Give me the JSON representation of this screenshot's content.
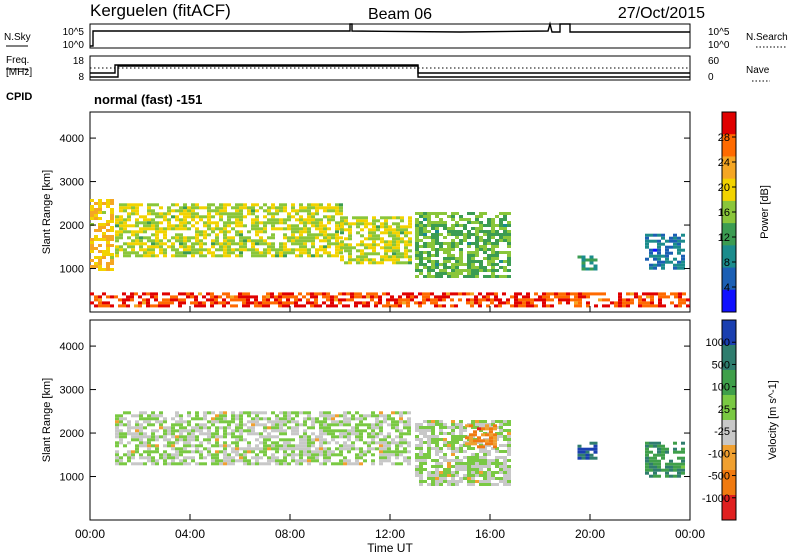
{
  "header": {
    "site": "Kerguelen (fitACF)",
    "beam": "Beam 06",
    "date": "27/Oct/2015"
  },
  "top_panels": {
    "nsky_label": "N.Sky",
    "nsky_ticks": [
      "10^5",
      "10^0"
    ],
    "nsearch_label": "N.Search",
    "nsearch_ticks": [
      "10^5",
      "10^0"
    ],
    "freq_label_1": "Freq.",
    "freq_label_2": "[MHz]",
    "freq_ticks": [
      "18",
      "8"
    ],
    "nave_label": "Nave",
    "nave_ticks": [
      "60",
      "0"
    ],
    "cpid_label": "CPID",
    "cpid_value": "normal (fast) -151"
  },
  "chart_data": [
    {
      "type": "heatmap",
      "name": "power",
      "ylabel": "Slant Range [km]",
      "xlabel": "",
      "ylim": [
        0,
        4600
      ],
      "yticks": [
        "1000",
        "2000",
        "3000",
        "4000"
      ],
      "colorbar_label": "Power [dB]",
      "colorbar_ticks": [
        "28",
        "24",
        "20",
        "16",
        "12",
        "8",
        "4"
      ],
      "colorbar_colors": [
        "#e00000",
        "#ff6a00",
        "#f5a623",
        "#f2d300",
        "#8ac63a",
        "#3b9c52",
        "#1b8c8c",
        "#1b5fb4",
        "#1010ff"
      ],
      "echo_regions": [
        {
          "t0": 0.0,
          "t1": 0.9,
          "r0": 1000,
          "r1": 2600,
          "cls": 3
        },
        {
          "t0": 1.0,
          "t1": 10.0,
          "r0": 1300,
          "r1": 2500,
          "cls": 4
        },
        {
          "t0": 10.0,
          "t1": 12.8,
          "r0": 1150,
          "r1": 2200,
          "cls": 4
        },
        {
          "t0": 13.0,
          "t1": 16.8,
          "r0": 800,
          "r1": 2300,
          "cls": 5
        },
        {
          "t0": 19.5,
          "t1": 20.3,
          "r0": 1000,
          "r1": 1300,
          "cls": 6
        },
        {
          "t0": 22.2,
          "t1": 23.8,
          "r0": 1000,
          "r1": 1800,
          "cls": 7
        },
        {
          "t0": 0.0,
          "t1": 24.0,
          "r0": 120,
          "r1": 450,
          "cls": 1
        }
      ]
    },
    {
      "type": "heatmap",
      "name": "velocity",
      "ylabel": "Slant Range [km]",
      "xlabel": "Time UT",
      "xticks": [
        "00:00",
        "04:00",
        "08:00",
        "12:00",
        "16:00",
        "20:00",
        "00:00"
      ],
      "ylim": [
        0,
        4600
      ],
      "yticks": [
        "1000",
        "2000",
        "3000",
        "4000"
      ],
      "colorbar_label": "Velocity [m s^-1]",
      "colorbar_ticks": [
        "1000",
        "500",
        "100",
        "25",
        "-25",
        "-100",
        "-500",
        "-1000"
      ],
      "colorbar_colors": [
        "#1a3fb0",
        "#2f7d6e",
        "#3f9f4a",
        "#7ac943",
        "#c8c8c8",
        "#f0a030",
        "#f07a10",
        "#e02020"
      ],
      "echo_regions": [
        {
          "t0": 1.0,
          "t1": 12.8,
          "r0": 1300,
          "r1": 2500,
          "cls": 4
        },
        {
          "t0": 13.0,
          "t1": 16.8,
          "r0": 800,
          "r1": 2300,
          "cls": 4
        },
        {
          "t0": 15.0,
          "t1": 16.2,
          "r0": 1700,
          "r1": 2200,
          "cls": 6
        },
        {
          "t0": 19.5,
          "t1": 20.3,
          "r0": 1400,
          "r1": 1800,
          "cls": 1
        },
        {
          "t0": 22.2,
          "t1": 23.8,
          "r0": 1000,
          "r1": 1800,
          "cls": 2
        }
      ]
    }
  ]
}
